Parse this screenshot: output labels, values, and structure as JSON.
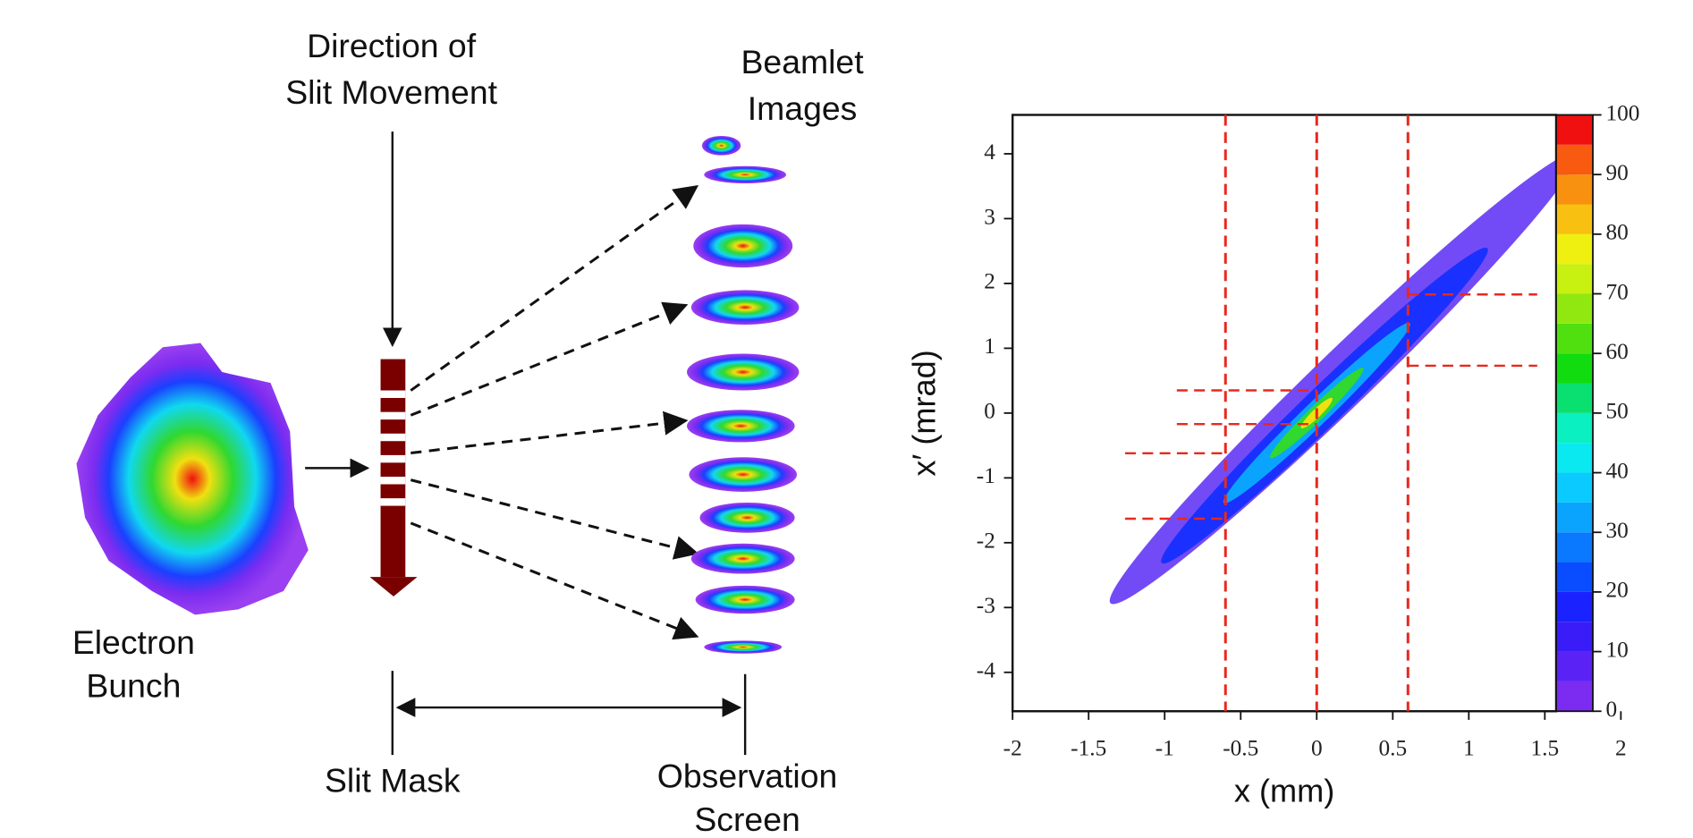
{
  "diagram": {
    "direction": [
      "Direction of",
      "Slit Movement"
    ],
    "beamlet": [
      "Beamlet",
      "Images"
    ],
    "bunch": [
      "Electron",
      "Bunch"
    ],
    "mask": "Slit Mask",
    "screen": [
      "Observation",
      "Screen"
    ]
  },
  "chart_data": {
    "type": "density",
    "xlabel": "x (mm)",
    "ylabel": "x′ (mrad)",
    "xlim": [
      -2,
      2
    ],
    "ylim": [
      -4.6,
      4.6
    ],
    "xticks": [
      -2,
      -1.5,
      -1,
      -0.5,
      0,
      0.5,
      1,
      1.5,
      2
    ],
    "yticks": [
      -4,
      -3,
      -2,
      -1,
      0,
      1,
      2,
      3,
      4
    ],
    "vlines": [
      -0.6,
      0,
      0.6
    ],
    "line_color": "#e8281e",
    "hsegments": [
      {
        "y": -0.62,
        "x": [
          -1.26,
          -0.6
        ]
      },
      {
        "y": -1.63,
        "x": [
          -1.26,
          -0.6
        ]
      },
      {
        "y": 0.35,
        "x": [
          -0.92,
          0
        ]
      },
      {
        "y": -0.17,
        "x": [
          -0.92,
          0
        ]
      },
      {
        "y": 1.83,
        "x": [
          0.6,
          1.45
        ]
      },
      {
        "y": 0.73,
        "x": [
          0.6,
          1.45
        ]
      }
    ],
    "colorbar": {
      "zlim": [
        0,
        100
      ],
      "ticks": [
        0,
        10,
        20,
        30,
        40,
        50,
        60,
        70,
        80,
        90,
        100
      ],
      "colors": [
        "#7b2cf0",
        "#5b22f5",
        "#3a1cf8",
        "#1a22ff",
        "#0a4cff",
        "#0a78ff",
        "#0aa4ff",
        "#0acaff",
        "#0ae8f0",
        "#0af0c0",
        "#0ae070",
        "#10dc10",
        "#50e010",
        "#90e810",
        "#c8f010",
        "#f0f010",
        "#f8c010",
        "#f89010",
        "#f85a10",
        "#f01010"
      ]
    }
  }
}
